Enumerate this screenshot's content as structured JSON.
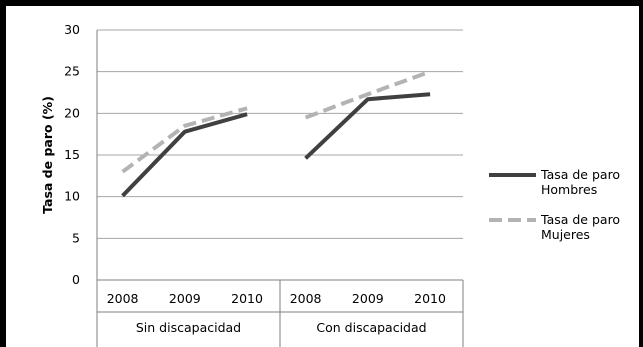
{
  "chart_data": {
    "type": "line",
    "title": "",
    "ylabel": "Tasa de paro (%)",
    "xlabel": "",
    "ylim": [
      0,
      30
    ],
    "yticks": [
      "0",
      "5",
      "10",
      "15",
      "20",
      "25",
      "30"
    ],
    "groups": [
      {
        "label": "Sin discapacidad",
        "categories": [
          "2008",
          "2009",
          "2010"
        ]
      },
      {
        "label": "Con discapacidad",
        "categories": [
          "2008",
          "2009",
          "2010"
        ]
      }
    ],
    "series": [
      {
        "name": [
          "Tasa de paro",
          "Hombres"
        ],
        "color": "#404040",
        "style": "solid",
        "values": [
          [
            10.1,
            17.8,
            19.9
          ],
          [
            14.6,
            21.7,
            22.3
          ]
        ]
      },
      {
        "name": [
          "Tasa de paro",
          "Mujeres"
        ],
        "color": "#b3b3b3",
        "style": "dashed",
        "values": [
          [
            13.0,
            18.5,
            20.6
          ],
          [
            19.5,
            22.3,
            25.0
          ]
        ]
      }
    ],
    "grid": true,
    "legend": "right"
  }
}
